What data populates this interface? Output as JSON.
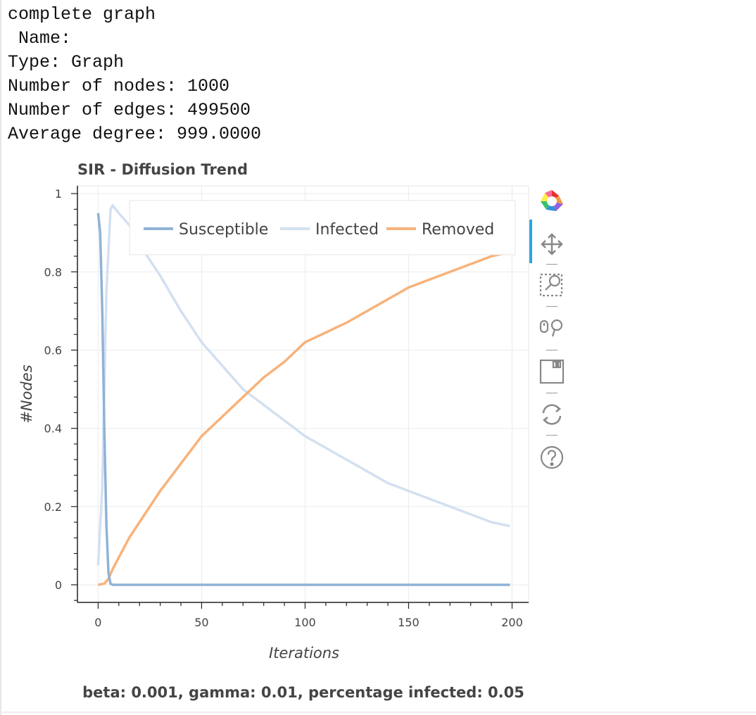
{
  "console": {
    "lines": [
      "complete graph",
      " Name:",
      "Type: Graph",
      "Number of nodes: 1000",
      "Number of edges: 499500",
      "Average degree: 999.0000"
    ]
  },
  "toolbar": {
    "tools": [
      {
        "name": "bokeh-logo-icon"
      },
      {
        "name": "pan-tool-icon"
      },
      {
        "name": "box-zoom-tool-icon"
      },
      {
        "name": "wheel-zoom-tool-icon"
      },
      {
        "name": "save-tool-icon"
      },
      {
        "name": "reset-tool-icon"
      },
      {
        "name": "help-tool-icon"
      }
    ]
  },
  "chart_data": {
    "type": "line",
    "title": "SIR - Diffusion Trend",
    "subtitle": "beta: 0.001, gamma: 0.01, percentage infected: 0.05",
    "xlabel": "Iterations",
    "ylabel": "#Nodes",
    "xlim": [
      -10,
      208
    ],
    "ylim": [
      -0.045,
      1.02
    ],
    "xticks": [
      0,
      50,
      100,
      150,
      200
    ],
    "xtick_labels": [
      "0",
      "50",
      "100",
      "150",
      "200"
    ],
    "yticks": [
      0,
      0.2,
      0.4,
      0.6,
      0.8,
      1
    ],
    "ytick_labels": [
      "0",
      "0.2",
      "0.4",
      "0.6",
      "0.8",
      "1"
    ],
    "grid": true,
    "legend_position": "top",
    "series": [
      {
        "name": "Susceptible",
        "color": "#8fb3d6",
        "x": [
          0,
          1,
          2,
          3,
          4,
          5,
          6,
          7,
          10,
          50,
          100,
          150,
          199
        ],
        "y": [
          0.95,
          0.9,
          0.7,
          0.4,
          0.15,
          0.03,
          0.003,
          0.0,
          0.0,
          0.0,
          0.0,
          0.0,
          0.0
        ]
      },
      {
        "name": "Infected",
        "color": "#d3e0f0",
        "x": [
          0,
          2,
          4,
          6,
          7,
          10,
          15,
          20,
          30,
          40,
          50,
          60,
          70,
          80,
          90,
          100,
          110,
          120,
          130,
          140,
          150,
          160,
          170,
          180,
          190,
          199
        ],
        "y": [
          0.05,
          0.25,
          0.75,
          0.96,
          0.97,
          0.95,
          0.92,
          0.87,
          0.79,
          0.7,
          0.62,
          0.56,
          0.5,
          0.46,
          0.42,
          0.38,
          0.35,
          0.32,
          0.29,
          0.26,
          0.24,
          0.22,
          0.2,
          0.18,
          0.16,
          0.15
        ]
      },
      {
        "name": "Removed",
        "color": "#f7b27a",
        "x": [
          0,
          3,
          5,
          7,
          10,
          15,
          20,
          30,
          40,
          50,
          60,
          70,
          80,
          90,
          100,
          110,
          120,
          130,
          140,
          150,
          160,
          170,
          180,
          190,
          199
        ],
        "y": [
          0.0,
          0.003,
          0.015,
          0.04,
          0.07,
          0.12,
          0.16,
          0.24,
          0.31,
          0.38,
          0.43,
          0.48,
          0.53,
          0.57,
          0.62,
          0.645,
          0.67,
          0.7,
          0.73,
          0.76,
          0.78,
          0.8,
          0.82,
          0.84,
          0.85
        ]
      }
    ]
  }
}
